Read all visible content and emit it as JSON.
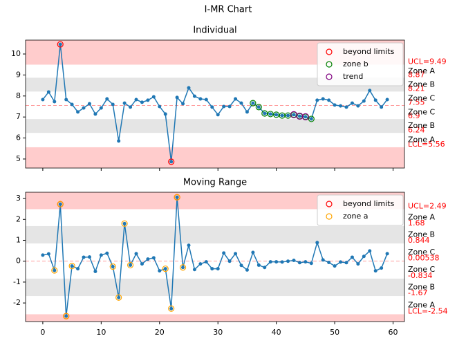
{
  "title": "I-MR Chart",
  "chart_data": [
    {
      "type": "line",
      "title": "Individual",
      "color": "#1f77b4",
      "x": [
        0,
        1,
        2,
        3,
        4,
        5,
        6,
        7,
        8,
        9,
        10,
        11,
        12,
        13,
        14,
        15,
        16,
        17,
        18,
        19,
        20,
        21,
        22,
        23,
        24,
        25,
        26,
        27,
        28,
        29,
        30,
        31,
        32,
        33,
        34,
        35,
        36,
        37,
        38,
        39,
        40,
        41,
        42,
        43,
        44,
        45,
        46,
        47,
        48,
        49,
        50,
        51,
        52,
        53,
        54,
        55,
        56,
        57,
        58,
        59
      ],
      "values": [
        7.83,
        8.19,
        7.73,
        10.46,
        7.83,
        7.6,
        7.24,
        7.43,
        7.63,
        7.14,
        7.43,
        7.86,
        7.6,
        5.86,
        7.66,
        7.47,
        7.83,
        7.7,
        7.8,
        7.96,
        7.5,
        7.14,
        4.87,
        7.93,
        7.63,
        8.39,
        7.99,
        7.86,
        7.83,
        7.47,
        7.11,
        7.5,
        7.5,
        7.86,
        7.66,
        7.24,
        7.66,
        7.47,
        7.17,
        7.14,
        7.11,
        7.07,
        7.07,
        7.11,
        7.04,
        7.01,
        6.91,
        7.8,
        7.86,
        7.8,
        7.57,
        7.53,
        7.47,
        7.66,
        7.53,
        7.76,
        8.26,
        7.8,
        7.47,
        7.83
      ],
      "xlim": [
        -2.95,
        61.95
      ],
      "xticks": [
        0,
        10,
        20,
        30,
        40,
        50,
        60
      ],
      "ylim": [
        4.57,
        10.66
      ],
      "yticks": [
        5,
        6,
        7,
        8,
        9,
        10
      ],
      "center": 7.55,
      "limits": [
        {
          "value": 9.49,
          "label": "UCL=9.49"
        },
        {
          "value": 8.87,
          "label": "8.87"
        },
        {
          "value": 8.21,
          "label": "8.21"
        },
        {
          "value": 7.55,
          "label": "7.55"
        },
        {
          "value": 6.9,
          "label": "6.9"
        },
        {
          "value": 6.24,
          "label": "6.24"
        },
        {
          "value": 5.56,
          "label": "LCL=5.56"
        }
      ],
      "zone_labels": [
        "Zone A",
        "Zone B",
        "Zone C",
        "Zone C",
        "Zone B",
        "Zone A"
      ],
      "band_colors": [
        "#ffcccc",
        "#ffffff",
        "#e5e5e5",
        "#ffffff",
        "#ffffff",
        "#e5e5e5",
        "#ffffff",
        "#ffcccc"
      ],
      "markers": [
        {
          "name": "beyond limits",
          "color": "red",
          "indices": [
            3,
            22
          ]
        },
        {
          "name": "zone b",
          "color": "green",
          "indices": [
            36,
            37,
            38,
            39,
            40,
            41,
            42,
            43,
            44,
            45,
            46
          ]
        },
        {
          "name": "trend",
          "color": "purple",
          "indices": [
            43,
            44,
            45
          ]
        }
      ],
      "legend": "upper right"
    },
    {
      "type": "line",
      "title": "Moving Range",
      "color": "#1f77b4",
      "x": [
        0,
        1,
        2,
        3,
        4,
        5,
        6,
        7,
        8,
        9,
        10,
        11,
        12,
        13,
        14,
        15,
        16,
        17,
        18,
        19,
        20,
        21,
        22,
        23,
        24,
        25,
        26,
        27,
        28,
        29,
        30,
        31,
        32,
        33,
        34,
        35,
        36,
        37,
        38,
        39,
        40,
        41,
        42,
        43,
        44,
        45,
        46,
        47,
        48,
        49,
        50,
        51,
        52,
        53,
        54,
        55,
        56,
        57,
        58,
        59
      ],
      "values": [
        0.29,
        0.35,
        -0.44,
        2.73,
        -2.63,
        -0.23,
        -0.36,
        0.19,
        0.2,
        -0.49,
        0.29,
        0.38,
        -0.26,
        -1.74,
        1.8,
        -0.19,
        0.36,
        -0.13,
        0.1,
        0.16,
        -0.46,
        -0.36,
        -2.27,
        3.06,
        -0.3,
        0.76,
        -0.4,
        -0.13,
        -0.03,
        -0.36,
        -0.36,
        0.39,
        0.0,
        0.36,
        -0.2,
        -0.42,
        0.42,
        -0.19,
        -0.3,
        -0.03,
        -0.03,
        -0.04,
        0.0,
        0.04,
        -0.07,
        -0.03,
        -0.1,
        0.89,
        0.06,
        -0.06,
        -0.23,
        -0.04,
        -0.07,
        0.19,
        -0.13,
        0.23,
        0.49,
        -0.46,
        -0.33,
        0.36
      ],
      "xlim": [
        -2.95,
        61.95
      ],
      "xticks": [
        0,
        10,
        20,
        30,
        40,
        50,
        60
      ],
      "ylim": [
        -2.89,
        3.3
      ],
      "yticks": [
        -2,
        -1,
        0,
        1,
        2,
        3
      ],
      "center": 0.00538,
      "limits": [
        {
          "value": 2.49,
          "label": "UCL=2.49"
        },
        {
          "value": 1.68,
          "label": "1.68"
        },
        {
          "value": 0.844,
          "label": "0.844"
        },
        {
          "value": 0.00538,
          "label": "0.00538"
        },
        {
          "value": -0.834,
          "label": "-0.834"
        },
        {
          "value": -1.67,
          "label": "-1.67"
        },
        {
          "value": -2.54,
          "label": "LCL=-2.54"
        }
      ],
      "zone_labels": [
        "Zone A",
        "Zone B",
        "Zone C",
        "Zone C",
        "Zone B",
        "Zone A"
      ],
      "band_colors": [
        "#ffcccc",
        "#ffffff",
        "#e5e5e5",
        "#ffffff",
        "#ffffff",
        "#e5e5e5",
        "#ffffff",
        "#ffcccc"
      ],
      "markers": [
        {
          "name": "beyond limits",
          "color": "red",
          "indices": [
            3,
            4,
            23
          ]
        },
        {
          "name": "zone a",
          "color": "orange",
          "indices": [
            2,
            3,
            4,
            5,
            12,
            13,
            14,
            15,
            21,
            22,
            23,
            24
          ]
        }
      ],
      "legend": "upper right"
    }
  ]
}
